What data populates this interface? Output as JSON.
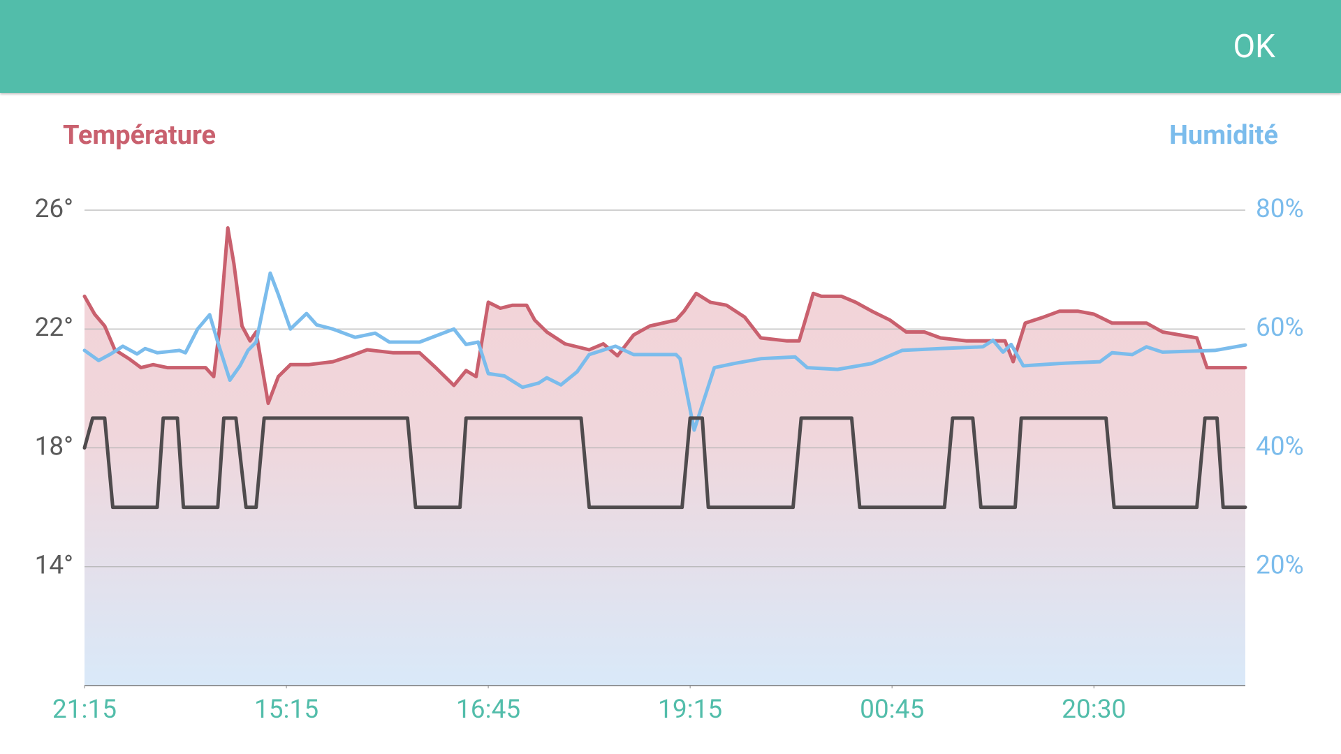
{
  "header": {
    "button": "OK"
  },
  "chart_data": {
    "type": "line",
    "ylabel": "Température",
    "y2label": "Humidité",
    "xlim": [
      0,
      575
    ],
    "xticks": [
      {
        "value": 0,
        "label": "21:15"
      },
      {
        "value": 100,
        "label": "15:15"
      },
      {
        "value": 200,
        "label": "16:45"
      },
      {
        "value": 300,
        "label": "19:15"
      },
      {
        "value": 400,
        "label": "00:45"
      },
      {
        "value": 500,
        "label": "20:30"
      }
    ],
    "ylim": [
      10,
      26
    ],
    "yticks": [
      {
        "value": 14,
        "label": "14°"
      },
      {
        "value": 18,
        "label": "18°"
      },
      {
        "value": 22,
        "label": "22°"
      },
      {
        "value": 26,
        "label": "26°"
      }
    ],
    "y2lim": [
      0,
      80
    ],
    "y2ticks": [
      {
        "value": 20,
        "label": "20%"
      },
      {
        "value": 40,
        "label": "40%"
      },
      {
        "value": 60,
        "label": "60%"
      },
      {
        "value": 80,
        "label": "80%"
      }
    ],
    "grid": true,
    "series": [
      {
        "color": "#c9606e",
        "fill": true,
        "axis": "y",
        "x": [
          0,
          5,
          10,
          15,
          22,
          28,
          34,
          41,
          49,
          60,
          64,
          67,
          71,
          74,
          78,
          82,
          85,
          91,
          96,
          102,
          111,
          123,
          132,
          140,
          153,
          166,
          174,
          183,
          189,
          194,
          200,
          206,
          212,
          219,
          223,
          229,
          238,
          250,
          257,
          264,
          272,
          280,
          293,
          297,
          303,
          310,
          318,
          327,
          335,
          348,
          354,
          361,
          365,
          375,
          382,
          390,
          399,
          407,
          416,
          424,
          437,
          456,
          460,
          466,
          475,
          483,
          492,
          500,
          509,
          526,
          534,
          551,
          556,
          575
        ],
        "values": [
          23.1,
          22.5,
          22.1,
          21.3,
          21.0,
          20.7,
          20.8,
          20.7,
          20.7,
          20.7,
          20.4,
          22.1,
          25.4,
          24.2,
          22.1,
          21.6,
          21.9,
          19.5,
          20.4,
          20.8,
          20.8,
          20.9,
          21.1,
          21.3,
          21.2,
          21.2,
          20.7,
          20.1,
          20.6,
          20.4,
          22.9,
          22.7,
          22.8,
          22.8,
          22.3,
          21.9,
          21.5,
          21.3,
          21.5,
          21.1,
          21.8,
          22.1,
          22.3,
          22.6,
          23.2,
          22.9,
          22.8,
          22.4,
          21.7,
          21.6,
          21.6,
          23.2,
          23.1,
          23.1,
          22.9,
          22.6,
          22.3,
          21.9,
          21.9,
          21.7,
          21.6,
          21.6,
          20.9,
          22.2,
          22.4,
          22.6,
          22.6,
          22.5,
          22.2,
          22.2,
          21.9,
          21.7,
          20.7,
          20.7
        ]
      },
      {
        "color": "#7bbcec",
        "fill": false,
        "axis": "y2",
        "x": [
          0,
          7,
          13,
          19,
          26,
          30,
          36,
          47,
          50,
          56,
          62,
          66,
          72,
          77,
          81,
          85,
          92,
          96,
          102,
          110,
          115,
          123,
          134,
          144,
          151,
          166,
          183,
          189,
          195,
          200,
          208,
          217,
          225,
          229,
          236,
          244,
          250,
          263,
          272,
          293,
          295,
          302,
          312,
          322,
          335,
          352,
          358,
          373,
          390,
          405,
          424,
          445,
          450,
          455,
          459,
          465,
          483,
          503,
          509,
          519,
          526,
          534,
          560,
          575
        ],
        "values": [
          56.4,
          54.7,
          55.8,
          57.1,
          55.8,
          56.7,
          56.0,
          56.4,
          56.0,
          60.0,
          62.4,
          57.8,
          51.4,
          53.8,
          56.4,
          57.8,
          69.4,
          65.8,
          60.0,
          62.6,
          60.7,
          60.0,
          58.6,
          59.3,
          57.8,
          57.8,
          60.0,
          57.4,
          57.8,
          52.5,
          52.1,
          50.2,
          50.9,
          51.8,
          50.6,
          52.8,
          55.7,
          57.1,
          55.7,
          55.7,
          55.0,
          43.0,
          53.5,
          54.2,
          55.0,
          55.3,
          53.5,
          53.2,
          54.2,
          56.4,
          56.7,
          57.0,
          58.1,
          56.1,
          57.4,
          53.8,
          54.2,
          54.5,
          56.0,
          55.7,
          57.0,
          56.1,
          56.4,
          57.3
        ]
      },
      {
        "color": "#4f4b4d",
        "fill": false,
        "axis": "y",
        "x": [
          0,
          4,
          10,
          14,
          36,
          39,
          46,
          49,
          66,
          69,
          75,
          80,
          85,
          89,
          160,
          164,
          186,
          189,
          246,
          250,
          296,
          300,
          306,
          309,
          351,
          355,
          380,
          384,
          426,
          430,
          440,
          444,
          461,
          464,
          506,
          510,
          551,
          555,
          561,
          564,
          575
        ],
        "values": [
          18,
          19,
          19,
          16,
          16,
          19,
          19,
          16,
          16,
          19,
          19,
          16,
          16,
          19,
          19,
          16,
          16,
          19,
          19,
          16,
          16,
          19,
          19,
          16,
          16,
          19,
          19,
          16,
          16,
          19,
          19,
          16,
          16,
          19,
          19,
          16,
          16,
          19,
          19,
          16,
          16
        ]
      }
    ]
  }
}
